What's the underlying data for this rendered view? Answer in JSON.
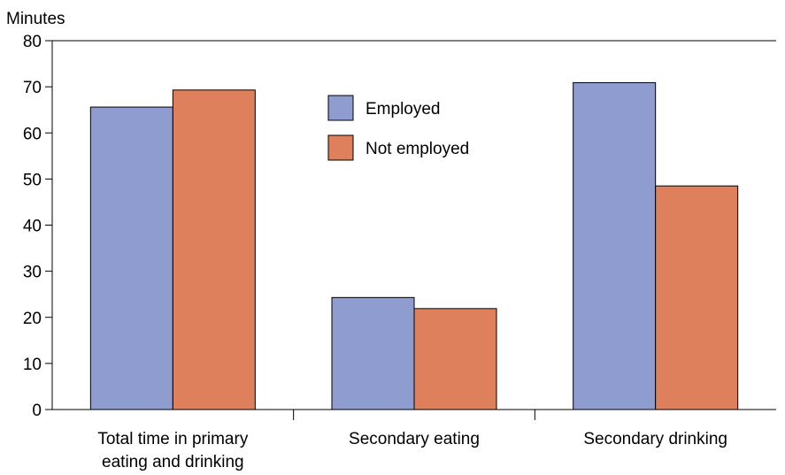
{
  "chart_data": {
    "type": "bar",
    "ylabel": "Minutes",
    "xlabel": "",
    "ylim": [
      0,
      80
    ],
    "yticks": [
      0,
      10,
      20,
      30,
      40,
      50,
      60,
      70,
      80
    ],
    "categories": [
      [
        "Total time in primary",
        "eating and drinking"
      ],
      [
        "Secondary eating"
      ],
      [
        "Secondary drinking"
      ]
    ],
    "series": [
      {
        "name": "Employed",
        "color": "#8e9ccf",
        "values": [
          65.6,
          24.3,
          70.9
        ]
      },
      {
        "name": "Not employed",
        "color": "#de805c",
        "values": [
          69.3,
          21.9,
          48.5
        ]
      }
    ],
    "legend_position": "top-center",
    "grid": false
  }
}
